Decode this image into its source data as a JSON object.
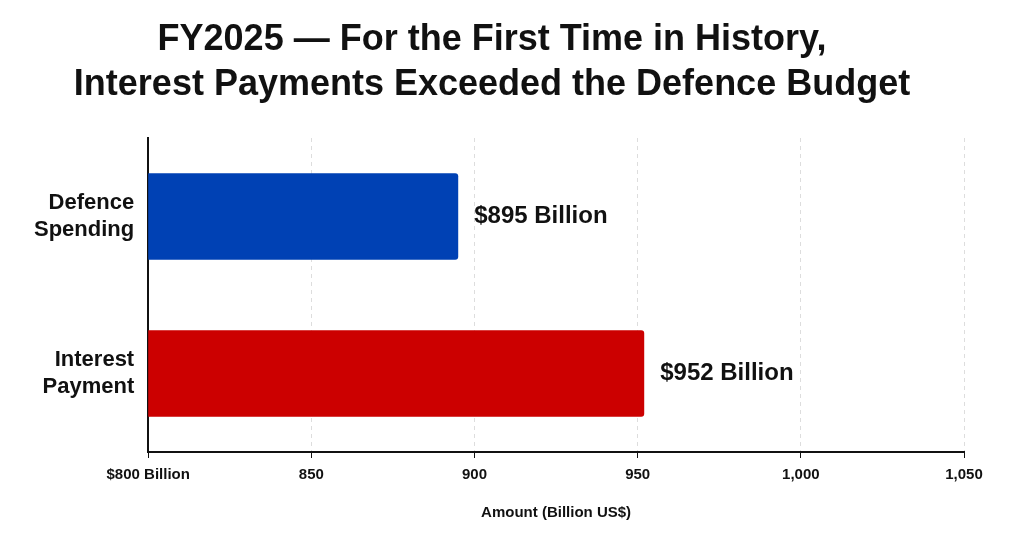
{
  "chart_data": {
    "type": "bar",
    "orientation": "horizontal",
    "title": "FY2025 — For the First Time in History,\nInterest Payments Exceeded the Defence Budget",
    "xlabel": "Amount (Billion US$)",
    "categories": [
      "Defence Spending",
      "Interest Payment"
    ],
    "values": [
      895,
      952
    ],
    "colors": [
      "#0041b4",
      "#cc0000"
    ],
    "value_labels": [
      "$895 Billion",
      "$952 Billion"
    ],
    "xlim": [
      800,
      1050
    ],
    "xticks": [
      {
        "value": 800,
        "label": "$800 Billion"
      },
      850,
      900,
      950,
      {
        "value": 1000,
        "label": "1,000"
      },
      {
        "value": 1050,
        "label": "1,050"
      }
    ],
    "grid": "x",
    "legend": false
  }
}
